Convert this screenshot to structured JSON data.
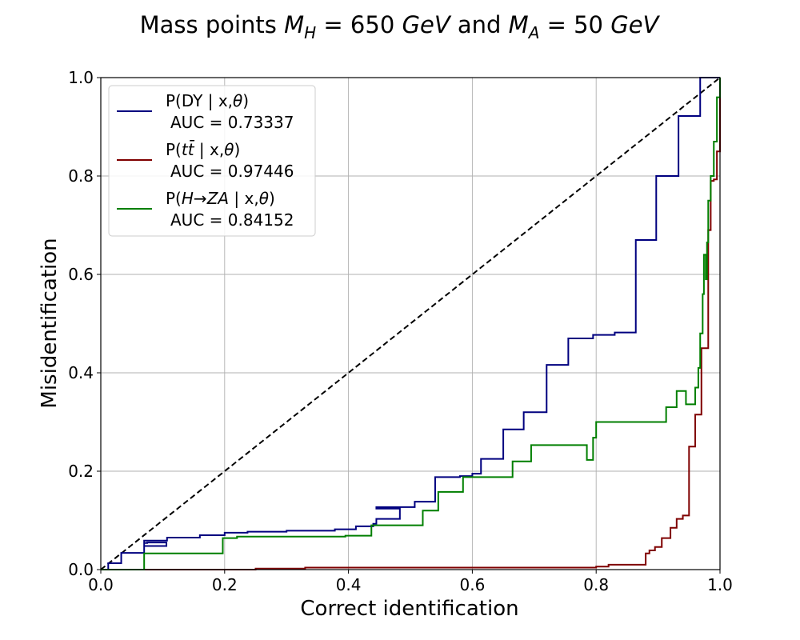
{
  "chart_data": {
    "type": "line",
    "title": "Mass points M_H = 650 GeV and M_A = 50 GeV",
    "title_parts": [
      "Mass points ",
      "M",
      "H",
      " = 650 ",
      "GeV",
      " and ",
      "M",
      "A",
      " = 50 ",
      "GeV"
    ],
    "xlabel": "Correct identification",
    "ylabel": "Misidentification",
    "xlim": [
      0,
      1
    ],
    "ylim": [
      0,
      1
    ],
    "xticks": [
      "0.0",
      "0.2",
      "0.4",
      "0.6",
      "0.8",
      "1.0"
    ],
    "yticks": [
      "0.0",
      "0.2",
      "0.4",
      "0.6",
      "0.8",
      "1.0"
    ],
    "grid": true,
    "legend_position": "top-left",
    "diagonal": {
      "style": "dashed",
      "color": "#000000"
    },
    "series": [
      {
        "name": "P(DY | x,θ)",
        "legend_parts": [
          "P(DY | x,",
          "θ",
          ")"
        ],
        "auc_label": "AUC = 0.73337",
        "color": "#00007f",
        "x": [
          0.0,
          0.012,
          0.012,
          0.033,
          0.033,
          0.07,
          0.07,
          0.075,
          0.075,
          0.106,
          0.106,
          0.07,
          0.07,
          0.107,
          0.107,
          0.16,
          0.16,
          0.2,
          0.2,
          0.237,
          0.237,
          0.3,
          0.3,
          0.378,
          0.378,
          0.412,
          0.412,
          0.44,
          0.44,
          0.445,
          0.445,
          0.483,
          0.483,
          0.445,
          0.445,
          0.507,
          0.507,
          0.54,
          0.54,
          0.58,
          0.58,
          0.6,
          0.6,
          0.614,
          0.614,
          0.65,
          0.65,
          0.683,
          0.683,
          0.72,
          0.72,
          0.755,
          0.755,
          0.795,
          0.795,
          0.83,
          0.83,
          0.864,
          0.864,
          0.897,
          0.897,
          0.933,
          0.933,
          0.968,
          0.968,
          1.0
        ],
        "y": [
          0.0,
          0.0,
          0.013,
          0.013,
          0.034,
          0.034,
          0.054,
          0.054,
          0.055,
          0.055,
          0.048,
          0.048,
          0.059,
          0.059,
          0.065,
          0.065,
          0.07,
          0.07,
          0.075,
          0.075,
          0.077,
          0.077,
          0.079,
          0.079,
          0.082,
          0.082,
          0.088,
          0.088,
          0.093,
          0.093,
          0.103,
          0.103,
          0.124,
          0.124,
          0.127,
          0.127,
          0.138,
          0.138,
          0.188,
          0.188,
          0.19,
          0.19,
          0.195,
          0.195,
          0.225,
          0.225,
          0.285,
          0.285,
          0.32,
          0.32,
          0.416,
          0.416,
          0.47,
          0.47,
          0.477,
          0.477,
          0.482,
          0.482,
          0.67,
          0.67,
          0.8,
          0.8,
          0.922,
          0.922,
          1.0,
          1.0
        ]
      },
      {
        "name": "P(tt̄ | x,θ)",
        "legend_parts": [
          "P(",
          "tt̄",
          " | x,",
          "θ",
          ")"
        ],
        "auc_label": "AUC = 0.97446",
        "color": "#7f0000",
        "x": [
          0.0,
          0.25,
          0.25,
          0.33,
          0.33,
          0.8,
          0.8,
          0.82,
          0.82,
          0.88,
          0.88,
          0.886,
          0.886,
          0.895,
          0.895,
          0.906,
          0.906,
          0.92,
          0.92,
          0.93,
          0.93,
          0.94,
          0.94,
          0.95,
          0.95,
          0.96,
          0.96,
          0.97,
          0.97,
          0.981,
          0.981,
          0.985,
          0.985,
          0.99,
          0.99,
          0.995,
          0.995,
          1.0,
          1.0
        ],
        "y": [
          0.0,
          0.0,
          0.002,
          0.002,
          0.004,
          0.004,
          0.006,
          0.006,
          0.01,
          0.01,
          0.033,
          0.033,
          0.039,
          0.039,
          0.046,
          0.046,
          0.064,
          0.064,
          0.085,
          0.085,
          0.103,
          0.103,
          0.11,
          0.11,
          0.25,
          0.25,
          0.315,
          0.315,
          0.45,
          0.45,
          0.69,
          0.69,
          0.79,
          0.79,
          0.793,
          0.793,
          0.85,
          0.85,
          1.0
        ]
      },
      {
        "name": "P(H→ZA | x,θ)",
        "legend_parts": [
          "P(",
          "H",
          "→",
          "ZA",
          " | x,",
          "θ",
          ")"
        ],
        "auc_label": "AUC = 0.84152",
        "color": "#007f00",
        "x": [
          0.0,
          0.07,
          0.07,
          0.197,
          0.197,
          0.22,
          0.22,
          0.395,
          0.395,
          0.437,
          0.437,
          0.52,
          0.52,
          0.545,
          0.545,
          0.585,
          0.585,
          0.665,
          0.665,
          0.695,
          0.695,
          0.785,
          0.785,
          0.795,
          0.795,
          0.8,
          0.8,
          0.913,
          0.913,
          0.93,
          0.93,
          0.945,
          0.945,
          0.96,
          0.96,
          0.965,
          0.965,
          0.968,
          0.968,
          0.972,
          0.972,
          0.974,
          0.974,
          0.977,
          0.977,
          0.979,
          0.979,
          0.981,
          0.981,
          0.985,
          0.985,
          0.99,
          0.99,
          0.995,
          0.995,
          1.0,
          1.0
        ],
        "y": [
          0.0,
          0.0,
          0.033,
          0.033,
          0.064,
          0.064,
          0.067,
          0.067,
          0.069,
          0.069,
          0.09,
          0.09,
          0.12,
          0.12,
          0.158,
          0.158,
          0.188,
          0.188,
          0.22,
          0.22,
          0.253,
          0.253,
          0.223,
          0.223,
          0.268,
          0.268,
          0.3,
          0.3,
          0.33,
          0.33,
          0.363,
          0.363,
          0.336,
          0.336,
          0.37,
          0.37,
          0.41,
          0.41,
          0.48,
          0.48,
          0.56,
          0.56,
          0.64,
          0.64,
          0.59,
          0.59,
          0.665,
          0.665,
          0.75,
          0.75,
          0.8,
          0.8,
          0.87,
          0.87,
          0.96,
          0.96,
          1.0
        ]
      }
    ]
  }
}
